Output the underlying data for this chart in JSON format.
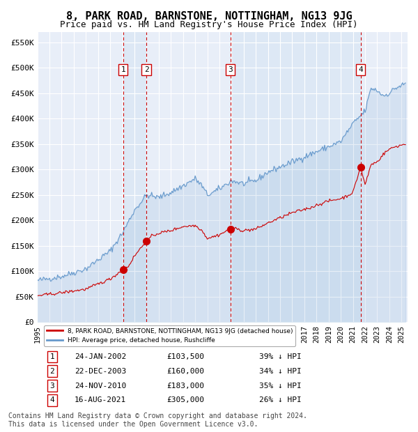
{
  "title": "8, PARK ROAD, BARNSTONE, NOTTINGHAM, NG13 9JG",
  "subtitle": "Price paid vs. HM Land Registry's House Price Index (HPI)",
  "title_fontsize": 11,
  "subtitle_fontsize": 9,
  "background_color": "#ffffff",
  "plot_bg_color": "#e8eef8",
  "grid_color": "#ffffff",
  "ylabel_ticks": [
    "£0",
    "£50K",
    "£100K",
    "£150K",
    "£200K",
    "£250K",
    "£300K",
    "£350K",
    "£400K",
    "£450K",
    "£500K",
    "£550K"
  ],
  "ytick_values": [
    0,
    50000,
    100000,
    150000,
    200000,
    250000,
    300000,
    350000,
    400000,
    450000,
    500000,
    550000
  ],
  "xmin": 1995.0,
  "xmax": 2025.5,
  "ymin": 0,
  "ymax": 570000,
  "hpi_color": "#6699cc",
  "price_color": "#cc0000",
  "sale_marker_color": "#cc0000",
  "vline_color": "#cc0000",
  "vband_color": "#dde8f5",
  "legend_label_price": "8, PARK ROAD, BARNSTONE, NOTTINGHAM, NG13 9JG (detached house)",
  "legend_label_hpi": "HPI: Average price, detached house, Rushcliffe",
  "sales": [
    {
      "num": 1,
      "date": "24-JAN-2002",
      "price": 103500,
      "pct": "39%",
      "year": 2002.07
    },
    {
      "num": 2,
      "date": "22-DEC-2003",
      "price": 160000,
      "pct": "34%",
      "year": 2003.98
    },
    {
      "num": 3,
      "date": "24-NOV-2010",
      "price": 183000,
      "pct": "35%",
      "year": 2010.9
    },
    {
      "num": 4,
      "date": "16-AUG-2021",
      "price": 305000,
      "pct": "26%",
      "year": 2021.63
    }
  ],
  "footer": "Contains HM Land Registry data © Crown copyright and database right 2024.\nThis data is licensed under the Open Government Licence v3.0.",
  "footer_fontsize": 7
}
